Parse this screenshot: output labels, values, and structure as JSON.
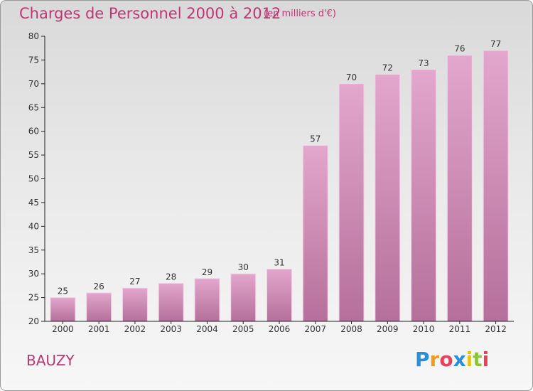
{
  "header": {
    "title": "Charges de Personnel 2000 à 2012",
    "subtitle": "(en milliers d'€)"
  },
  "commune": "BAUZY",
  "logo": {
    "letters": [
      "P",
      "r",
      "o",
      "x",
      "i",
      "t",
      "i"
    ],
    "colors": [
      "#2a8fd8",
      "#f39a1e",
      "#e8425a",
      "#2a8fd8",
      "#e8c21e",
      "#8cc63f",
      "#e8425a"
    ]
  },
  "colors": {
    "bar_top": "#e3a6cc",
    "bar_bottom": "#b4709a",
    "bar_edge": "#f2d3e6",
    "axis": "#222222",
    "title": "#c03573"
  },
  "chart_data": {
    "type": "bar",
    "categories": [
      "2000",
      "2001",
      "2002",
      "2003",
      "2004",
      "2005",
      "2006",
      "2007",
      "2008",
      "2009",
      "2010",
      "2011",
      "2012"
    ],
    "values": [
      25,
      26,
      27,
      28,
      29,
      30,
      31,
      57,
      70,
      72,
      73,
      76,
      77
    ],
    "title": "Charges de Personnel 2000 à 2012",
    "ylim": [
      20,
      80
    ],
    "yticks": [
      20,
      25,
      30,
      35,
      40,
      45,
      50,
      55,
      60,
      65,
      70,
      75,
      80
    ],
    "grid": false,
    "data_labels": true
  }
}
